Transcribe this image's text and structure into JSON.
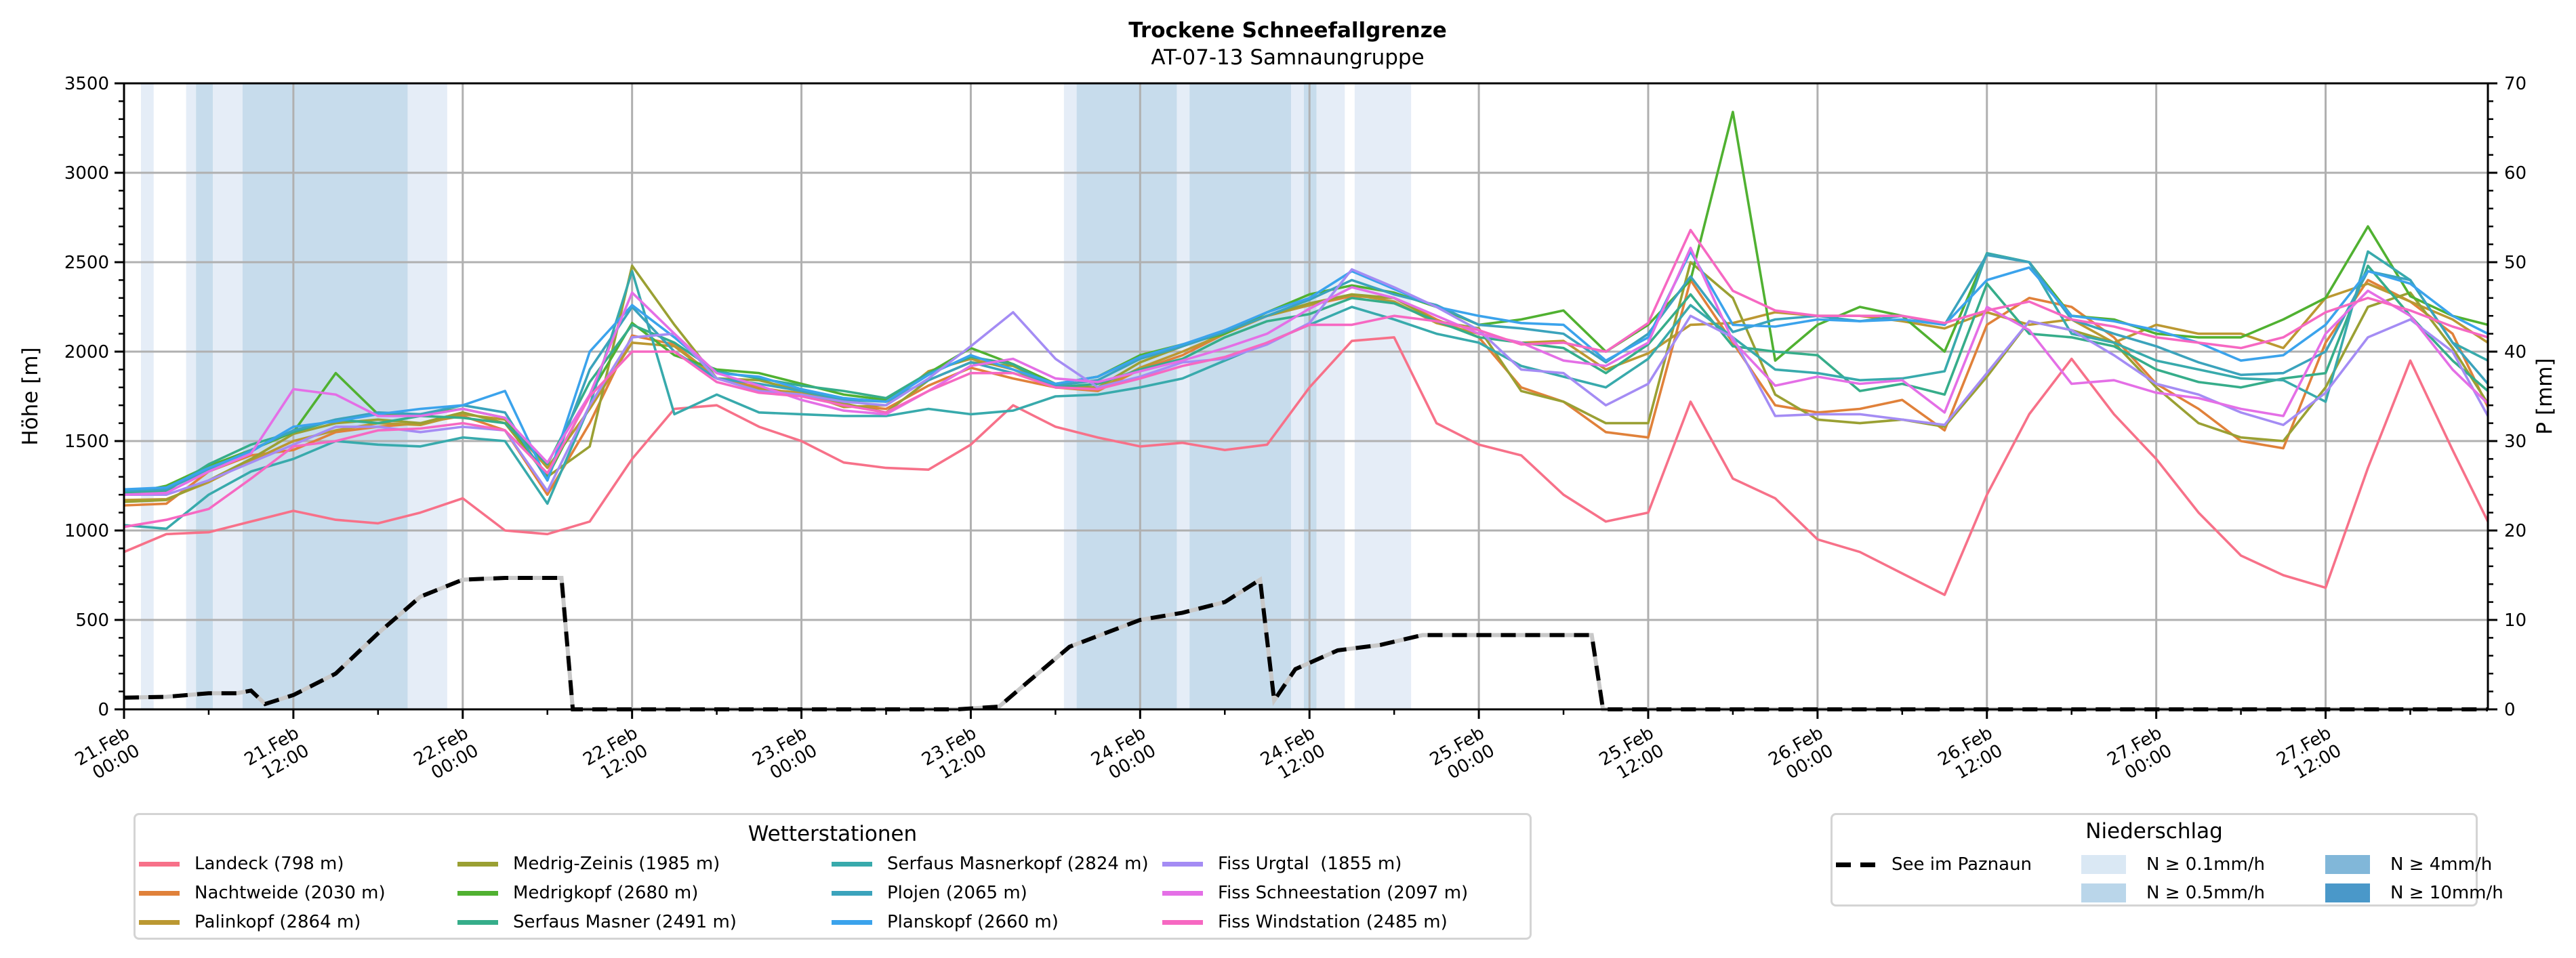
{
  "chart_data": {
    "type": "line",
    "title": "Trockene Schneefallgrenze",
    "subtitle": "AT-07-13 Samnaungruppe",
    "ylabel": "Höhe [m]",
    "ylabel_right": "P [mm]",
    "ylim": [
      0,
      3500
    ],
    "ylim_right": [
      0,
      70
    ],
    "yticks": [
      0,
      500,
      1000,
      1500,
      2000,
      2500,
      3000,
      3500
    ],
    "yticks_right": [
      0,
      10,
      20,
      30,
      40,
      50,
      60,
      70
    ],
    "grid": true,
    "x_unit": "hours since 21.Feb 00:00",
    "xlim": [
      0,
      167.5
    ],
    "xticks": [
      {
        "h": 0,
        "label1": "21.Feb",
        "label2": "00:00"
      },
      {
        "h": 12,
        "label1": "21.Feb",
        "label2": "12:00"
      },
      {
        "h": 24,
        "label1": "22.Feb",
        "label2": "00:00"
      },
      {
        "h": 36,
        "label1": "22.Feb",
        "label2": "12:00"
      },
      {
        "h": 48,
        "label1": "23.Feb",
        "label2": "00:00"
      },
      {
        "h": 60,
        "label1": "23.Feb",
        "label2": "12:00"
      },
      {
        "h": 72,
        "label1": "24.Feb",
        "label2": "00:00"
      },
      {
        "h": 84,
        "label1": "24.Feb",
        "label2": "12:00"
      },
      {
        "h": 96,
        "label1": "25.Feb",
        "label2": "00:00"
      },
      {
        "h": 108,
        "label1": "25.Feb",
        "label2": "12:00"
      },
      {
        "h": 120,
        "label1": "26.Feb",
        "label2": "00:00"
      },
      {
        "h": 132,
        "label1": "26.Feb",
        "label2": "12:00"
      },
      {
        "h": 144,
        "label1": "27.Feb",
        "label2": "00:00"
      },
      {
        "h": 156,
        "label1": "27.Feb",
        "label2": "12:00"
      }
    ],
    "x_hours": [
      0,
      3,
      6,
      9,
      12,
      15,
      18,
      21,
      24,
      27,
      30,
      33,
      36,
      39,
      42,
      45,
      48,
      51,
      54,
      57,
      60,
      63,
      66,
      69,
      72,
      75,
      78,
      81,
      84,
      87,
      90,
      93,
      96,
      99,
      102,
      105,
      108,
      111,
      114,
      117,
      120,
      123,
      126,
      129,
      132,
      135,
      138,
      141,
      144,
      147,
      150,
      153,
      156,
      159,
      162,
      165,
      167.5
    ],
    "series": [
      {
        "name": "Landeck (798 m)",
        "color": "#f77189",
        "values": [
          880,
          980,
          990,
          1050,
          1110,
          1060,
          1040,
          1100,
          1180,
          1000,
          980,
          1050,
          1400,
          1680,
          1700,
          1580,
          1500,
          1380,
          1350,
          1340,
          1480,
          1700,
          1580,
          1520,
          1470,
          1490,
          1450,
          1480,
          1800,
          2060,
          2080,
          1600,
          1480,
          1420,
          1200,
          1050,
          1100,
          1720,
          1290,
          1180,
          950,
          880,
          760,
          640,
          1200,
          1650,
          1960,
          1650,
          1400,
          1100,
          860,
          750,
          680,
          1350,
          1950,
          1450,
          1050
        ]
      },
      {
        "name": "Nachtweide (2030 m)",
        "color": "#e0813a",
        "values": [
          1140,
          1150,
          1330,
          1420,
          1450,
          1550,
          1580,
          1600,
          1640,
          1560,
          1200,
          1600,
          2090,
          2040,
          1850,
          1800,
          1760,
          1700,
          1680,
          1810,
          1910,
          1850,
          1800,
          1780,
          1900,
          1980,
          2100,
          2200,
          2260,
          2310,
          2300,
          2180,
          2080,
          1800,
          1720,
          1550,
          1520,
          2400,
          2050,
          1700,
          1660,
          1680,
          1730,
          1560,
          2150,
          2300,
          2250,
          2080,
          1820,
          1680,
          1500,
          1460,
          2050,
          2400,
          2280,
          2100,
          1690
        ]
      },
      {
        "name": "Palinkopf (2864 m)",
        "color": "#bb9832",
        "values": [
          1170,
          1175,
          1270,
          1390,
          1500,
          1560,
          1600,
          1590,
          1650,
          1620,
          1350,
          1680,
          2050,
          2030,
          1850,
          1790,
          1770,
          1690,
          1700,
          1890,
          1960,
          1900,
          1800,
          1790,
          1910,
          2000,
          2100,
          2200,
          2260,
          2320,
          2280,
          2160,
          2100,
          2050,
          2060,
          1900,
          1990,
          2150,
          2160,
          2220,
          2200,
          2200,
          2170,
          2130,
          2220,
          2150,
          2180,
          2050,
          2150,
          2100,
          2100,
          2020,
          2300,
          2380,
          2280,
          2180,
          2050
        ]
      },
      {
        "name": "Medrig-Zeinis (1985 m)",
        "color": "#9aa033",
        "values": [
          1160,
          1170,
          1280,
          1400,
          1540,
          1600,
          1620,
          1600,
          1660,
          1600,
          1300,
          1470,
          2480,
          2150,
          1850,
          1840,
          1780,
          1710,
          1660,
          1840,
          1940,
          1920,
          1810,
          1800,
          1940,
          2030,
          2120,
          2200,
          2270,
          2320,
          2300,
          2170,
          2130,
          1780,
          1720,
          1600,
          1600,
          2500,
          2300,
          1760,
          1620,
          1600,
          1620,
          1580,
          1860,
          2170,
          2120,
          2050,
          1800,
          1600,
          1520,
          1500,
          1800,
          2250,
          2330,
          2020,
          1710
        ]
      },
      {
        "name": "Medrigkopf (2680 m)",
        "color": "#50b131",
        "values": [
          1200,
          1250,
          1360,
          1450,
          1550,
          1880,
          1650,
          1650,
          1680,
          1630,
          1300,
          1760,
          2160,
          1980,
          1900,
          1880,
          1820,
          1760,
          1730,
          1880,
          2020,
          1930,
          1820,
          1860,
          1980,
          2040,
          2100,
          2220,
          2320,
          2370,
          2330,
          2250,
          2150,
          2180,
          2230,
          2000,
          2150,
          2400,
          3340,
          1950,
          2150,
          2250,
          2200,
          2000,
          2550,
          2500,
          2200,
          2180,
          2100,
          2080,
          2080,
          2180,
          2300,
          2700,
          2310,
          2200,
          2150
        ]
      },
      {
        "name": "Serfaus Masner (2491 m)",
        "color": "#36ad8a",
        "values": [
          1210,
          1220,
          1370,
          1480,
          1550,
          1620,
          1600,
          1640,
          1630,
          1600,
          1370,
          1830,
          2150,
          2050,
          1890,
          1850,
          1810,
          1780,
          1740,
          1880,
          1970,
          1930,
          1800,
          1820,
          1900,
          1960,
          2080,
          2170,
          2210,
          2300,
          2270,
          2170,
          2080,
          2050,
          2020,
          1880,
          2040,
          2320,
          2030,
          2000,
          1980,
          1780,
          1820,
          1760,
          2380,
          2100,
          2080,
          2030,
          1900,
          1830,
          1800,
          1850,
          1880,
          2480,
          2200,
          1950,
          1780
        ]
      },
      {
        "name": "Serfaus Masnerkopf (2824 m)",
        "color": "#38aaac",
        "values": [
          1030,
          1010,
          1200,
          1330,
          1400,
          1500,
          1480,
          1470,
          1520,
          1500,
          1150,
          1700,
          2450,
          1650,
          1760,
          1660,
          1650,
          1640,
          1640,
          1680,
          1650,
          1670,
          1750,
          1760,
          1800,
          1850,
          1950,
          2050,
          2150,
          2250,
          2180,
          2100,
          2050,
          1920,
          1860,
          1800,
          1960,
          2260,
          2080,
          1900,
          1880,
          1840,
          1850,
          1890,
          2550,
          2500,
          2100,
          2050,
          1950,
          1900,
          1850,
          1840,
          1720,
          2560,
          2400,
          2050,
          1950
        ]
      },
      {
        "name": "Plojen (2065 m)",
        "color": "#3ba3bc",
        "values": [
          1220,
          1230,
          1340,
          1450,
          1560,
          1620,
          1660,
          1650,
          1700,
          1660,
          1280,
          1900,
          2250,
          2000,
          1850,
          1820,
          1780,
          1730,
          1720,
          1840,
          1940,
          1880,
          1810,
          1840,
          1960,
          2030,
          2110,
          2200,
          2290,
          2400,
          2320,
          2260,
          2150,
          2130,
          2100,
          1940,
          2100,
          2420,
          2110,
          2180,
          2200,
          2170,
          2200,
          2150,
          2540,
          2500,
          2180,
          2100,
          2030,
          1940,
          1870,
          1880,
          2000,
          2450,
          2400,
          2050,
          1820
        ]
      },
      {
        "name": "Planskopf (2660 m)",
        "color": "#3ba3ec",
        "values": [
          1230,
          1240,
          1350,
          1440,
          1580,
          1610,
          1650,
          1680,
          1700,
          1780,
          1280,
          2000,
          2260,
          2080,
          1880,
          1860,
          1790,
          1740,
          1720,
          1870,
          1980,
          1900,
          1820,
          1860,
          1970,
          2040,
          2120,
          2220,
          2300,
          2450,
          2350,
          2250,
          2200,
          2160,
          2150,
          1950,
          2080,
          2560,
          2150,
          2140,
          2180,
          2170,
          2180,
          2150,
          2400,
          2470,
          2200,
          2170,
          2120,
          2050,
          1950,
          1980,
          2150,
          2450,
          2380,
          2200,
          2100
        ]
      },
      {
        "name": "Fiss Urgtal  (1855 m)",
        "color": "#a48cf4",
        "values": [
          1200,
          1200,
          1280,
          1380,
          1480,
          1580,
          1580,
          1550,
          1580,
          1560,
          1220,
          1700,
          2080,
          2100,
          1850,
          1780,
          1760,
          1720,
          1700,
          1850,
          2030,
          2220,
          1960,
          1800,
          1860,
          1940,
          1960,
          2040,
          2160,
          2460,
          2360,
          2250,
          2120,
          1900,
          1880,
          1700,
          1820,
          2200,
          2080,
          1640,
          1650,
          1650,
          1620,
          1590,
          1880,
          2170,
          2120,
          1980,
          1820,
          1760,
          1660,
          1590,
          1770,
          2080,
          2180,
          2000,
          1640
        ]
      },
      {
        "name": "Fiss Schneestation (2097 m)",
        "color": "#e46fe6",
        "values": [
          1200,
          1210,
          1330,
          1430,
          1790,
          1760,
          1640,
          1640,
          1680,
          1630,
          1380,
          1760,
          2330,
          2100,
          1880,
          1810,
          1730,
          1670,
          1650,
          1780,
          1920,
          1960,
          1850,
          1830,
          1890,
          1950,
          2020,
          2100,
          2240,
          2360,
          2300,
          2200,
          2100,
          2050,
          1950,
          1920,
          2050,
          2580,
          2060,
          1810,
          1860,
          1820,
          1840,
          1660,
          2250,
          2120,
          1820,
          1840,
          1770,
          1740,
          1680,
          1640,
          2100,
          2340,
          2200,
          1900,
          1710
        ]
      },
      {
        "name": "Fiss Windstation (2485 m)",
        "color": "#f668c2",
        "values": [
          1020,
          1060,
          1120,
          1290,
          1470,
          1500,
          1560,
          1570,
          1600,
          1560,
          1320,
          1750,
          2000,
          2000,
          1830,
          1770,
          1750,
          1700,
          1660,
          1780,
          1880,
          1880,
          1800,
          1790,
          1850,
          1920,
          1970,
          2050,
          2150,
          2150,
          2200,
          2170,
          2120,
          2040,
          2050,
          2000,
          2160,
          2680,
          2340,
          2230,
          2200,
          2200,
          2200,
          2160,
          2230,
          2280,
          2180,
          2140,
          2080,
          2050,
          2020,
          2080,
          2220,
          2300,
          2230,
          2140,
          2080
        ]
      }
    ],
    "precip_series": {
      "name": "See im Paznaun",
      "color": "#000000",
      "style": "dashed",
      "axis": "right",
      "x_hours": [
        0,
        3,
        6,
        8,
        9,
        10,
        12,
        15,
        18,
        21,
        24,
        27,
        30,
        31,
        31.8,
        40,
        48,
        59,
        62,
        64,
        67,
        72,
        75,
        78,
        80.5,
        81.5,
        83,
        86,
        89,
        92,
        98,
        102,
        104,
        104.8,
        120,
        140,
        167.5
      ],
      "values": [
        1.3,
        1.4,
        1.8,
        1.8,
        2.1,
        0.6,
        1.6,
        4.0,
        8.5,
        12.6,
        14.5,
        14.7,
        14.7,
        14.7,
        0,
        0,
        0,
        0,
        0.3,
        3.0,
        7.0,
        10.0,
        10.8,
        12.0,
        14.5,
        1.0,
        4.5,
        6.6,
        7.2,
        8.3,
        8.3,
        8.3,
        8.3,
        0,
        0,
        0,
        0
      ]
    },
    "precip_bands": [
      {
        "from": 1.2,
        "to": 2.1,
        "level": "N ≥ 0.1mm/h"
      },
      {
        "from": 4.4,
        "to": 5.1,
        "level": "N ≥ 0.1mm/h"
      },
      {
        "from": 5.1,
        "to": 6.3,
        "level": "N ≥ 0.5mm/h"
      },
      {
        "from": 6.3,
        "to": 8.4,
        "level": "N ≥ 0.1mm/h"
      },
      {
        "from": 8.4,
        "to": 20.1,
        "level": "N ≥ 0.5mm/h"
      },
      {
        "from": 20.1,
        "to": 22.9,
        "level": "N ≥ 0.1mm/h"
      },
      {
        "from": 66.6,
        "to": 67.5,
        "level": "N ≥ 0.1mm/h"
      },
      {
        "from": 67.5,
        "to": 74.6,
        "level": "N ≥ 0.5mm/h"
      },
      {
        "from": 74.6,
        "to": 75.5,
        "level": "N ≥ 0.1mm/h"
      },
      {
        "from": 75.5,
        "to": 82.7,
        "level": "N ≥ 0.5mm/h"
      },
      {
        "from": 82.7,
        "to": 83.6,
        "level": "N ≥ 0.1mm/h"
      },
      {
        "from": 83.6,
        "to": 84.5,
        "level": "N ≥ 0.5mm/h"
      },
      {
        "from": 84.5,
        "to": 86.5,
        "level": "N ≥ 0.1mm/h"
      },
      {
        "from": 87.2,
        "to": 91.2,
        "level": "N ≥ 0.1mm/h"
      }
    ],
    "precip_levels": [
      {
        "label": "N ≥ 0.1mm/h",
        "color": "#dae8f4"
      },
      {
        "label": "N ≥ 0.5mm/h",
        "color": "#bad6ea"
      },
      {
        "label": "N ≥ 4mm/h",
        "color": "#81b7d9"
      },
      {
        "label": "N ≥ 10mm/h",
        "color": "#4a98c9"
      }
    ],
    "legend_stations_title": "Wetterstationen",
    "legend_precip_title": "Niederschlag",
    "legend_stations_placement": "bottom-left",
    "legend_precip_placement": "bottom-right"
  }
}
